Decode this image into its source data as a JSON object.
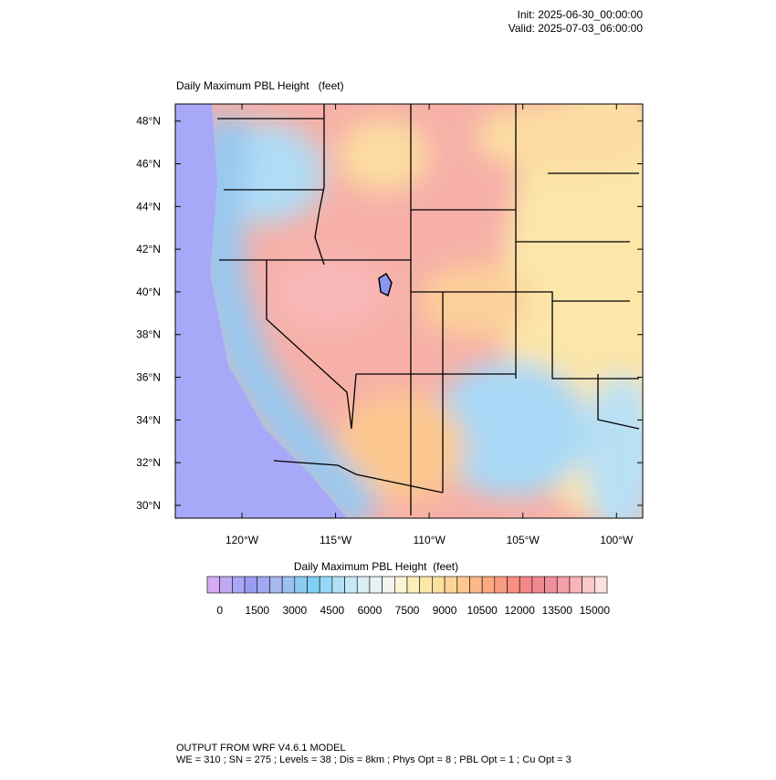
{
  "header": {
    "init": "Init: 2025-06-30_00:00:00",
    "valid": "Valid: 2025-07-03_06:00:00"
  },
  "map": {
    "title": "Daily Maximum PBL Height   (feet)",
    "xlim": [
      -123.56,
      -98.6
    ],
    "ylim": [
      29.4,
      48.8
    ],
    "xticks": [
      {
        "value": -120,
        "label": "120°W"
      },
      {
        "value": -115,
        "label": "115°W"
      },
      {
        "value": -110,
        "label": "110°W"
      },
      {
        "value": -105,
        "label": "105°W"
      },
      {
        "value": -100,
        "label": "100°W"
      }
    ],
    "yticks": [
      {
        "value": 30,
        "label": "30°N"
      },
      {
        "value": 32,
        "label": "32°N"
      },
      {
        "value": 34,
        "label": "34°N"
      },
      {
        "value": 36,
        "label": "36°N"
      },
      {
        "value": 38,
        "label": "38°N"
      },
      {
        "value": 40,
        "label": "40°N"
      },
      {
        "value": 42,
        "label": "42°N"
      },
      {
        "value": 44,
        "label": "44°N"
      },
      {
        "value": 46,
        "label": "46°N"
      },
      {
        "value": 48,
        "label": "48°N"
      }
    ]
  },
  "colorbar": {
    "title": "Daily Maximum PBL Height  (feet)",
    "lim": [
      -500,
      15500
    ],
    "ticks": [
      0,
      1500,
      3000,
      4500,
      6000,
      7500,
      9000,
      10500,
      12000,
      13500,
      15000
    ],
    "colors": [
      "#d4aaf5",
      "#c0a8f5",
      "#aaa5f5",
      "#9a9cf0",
      "#a0a8f0",
      "#a8b8f0",
      "#9cc0f0",
      "#8ccaf0",
      "#80d0f5",
      "#96d8f5",
      "#b0e0f5",
      "#c8e8f5",
      "#daeef5",
      "#e8f2f5",
      "#f5f5f0",
      "#fcf4d8",
      "#fcf0b8",
      "#fce8a8",
      "#fce0a0",
      "#fcd498",
      "#fcc890",
      "#fcb888",
      "#fca880",
      "#fa9c80",
      "#f89080",
      "#f48888",
      "#f08890",
      "#f0909a",
      "#f4a0a8",
      "#f8b4b8",
      "#fcc8c8",
      "#fde0e0"
    ]
  },
  "footer": {
    "line1": "OUTPUT FROM WRF V4.6.1 MODEL",
    "line2": "WE = 310 ; SN = 275 ; Levels = 38 ; Dis = 8km ; Phys Opt = 8 ; PBL Opt = 1 ; Cu Opt = 3"
  }
}
